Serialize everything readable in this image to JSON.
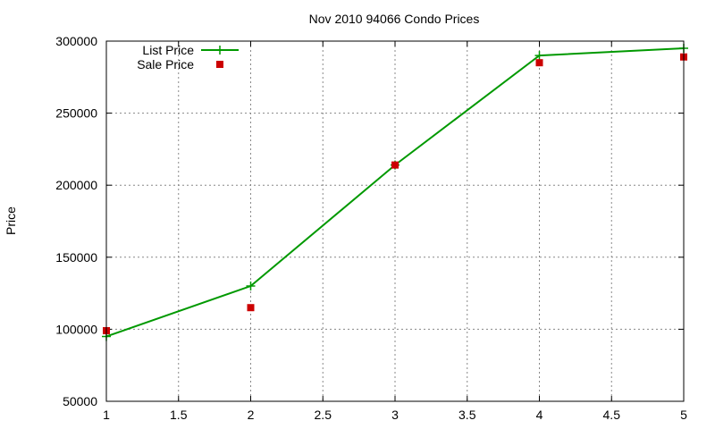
{
  "chart_data": {
    "type": "line",
    "title": "Nov 2010 94066 Condo Prices",
    "xlabel": "",
    "ylabel": "Price",
    "xlim": [
      1,
      5
    ],
    "ylim": [
      50000,
      300000
    ],
    "xticks": [
      1,
      1.5,
      2,
      2.5,
      3,
      3.5,
      4,
      4.5,
      5
    ],
    "yticks": [
      50000,
      100000,
      150000,
      200000,
      250000,
      300000
    ],
    "grid": true,
    "legend_position": "top-left",
    "series": [
      {
        "name": "List Price",
        "style": "lines+points",
        "marker": "plus",
        "color": "#009900",
        "x": [
          1,
          2,
          3,
          4,
          5
        ],
        "y": [
          95000,
          130000,
          214000,
          290000,
          295000
        ]
      },
      {
        "name": "Sale Price",
        "style": "points",
        "marker": "square",
        "color": "#cc0000",
        "x": [
          1,
          2,
          3,
          4,
          5
        ],
        "y": [
          99000,
          115000,
          214000,
          285000,
          289000
        ]
      }
    ]
  }
}
